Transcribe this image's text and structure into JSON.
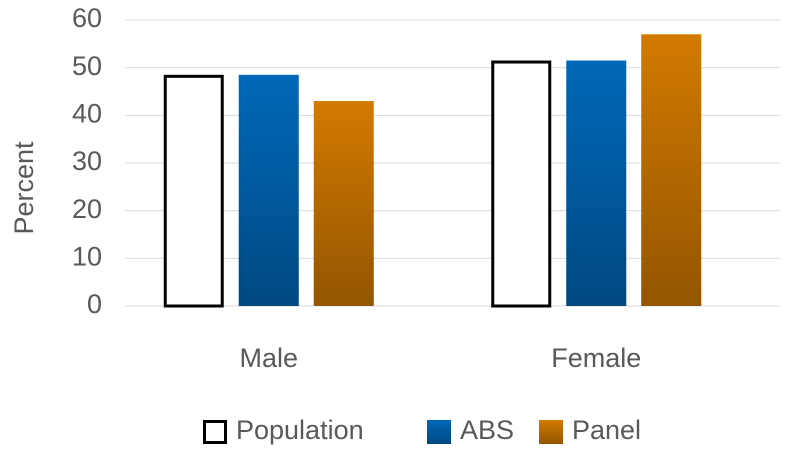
{
  "chart_data": {
    "type": "bar",
    "y_label": "Percent",
    "categories": [
      "Male",
      "Female"
    ],
    "series": [
      {
        "name": "Population",
        "color": "#ffffff",
        "edge": "#000000",
        "values": [
          48.5,
          51.5
        ]
      },
      {
        "name": "ABS",
        "color": "#0068b8",
        "values": [
          48.5,
          51.5
        ]
      },
      {
        "name": "Panel",
        "color": "#d27a00",
        "values": [
          43,
          57
        ]
      }
    ],
    "ylim": [
      0,
      60
    ],
    "yticks": [
      0,
      10,
      20,
      30,
      40,
      50,
      60
    ],
    "grid": true,
    "legend": "bottom"
  }
}
